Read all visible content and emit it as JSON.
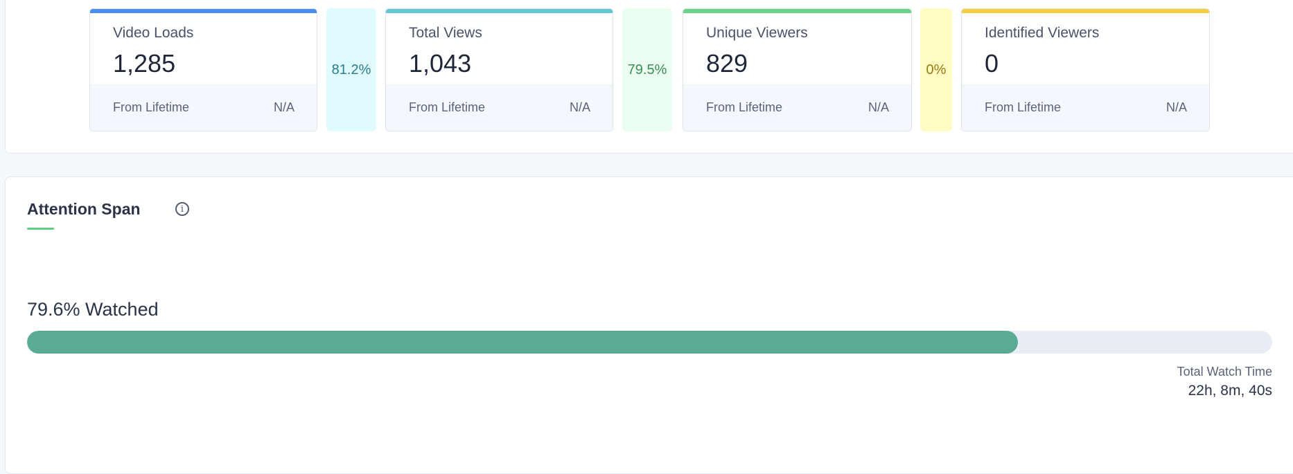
{
  "stats": [
    {
      "title": "Video Loads",
      "value": "1,285",
      "foot_label": "From Lifetime",
      "foot_value": "N/A",
      "accent": "#4a8ef0"
    },
    {
      "title": "Total Views",
      "value": "1,043",
      "foot_label": "From Lifetime",
      "foot_value": "N/A",
      "accent": "#62c6d4"
    },
    {
      "title": "Unique Viewers",
      "value": "829",
      "foot_label": "From Lifetime",
      "foot_value": "N/A",
      "accent": "#6cd388"
    },
    {
      "title": "Identified Viewers",
      "value": "0",
      "foot_label": "From Lifetime",
      "foot_value": "N/A",
      "accent": "#f2cf3e"
    }
  ],
  "conversions": [
    {
      "value": "81.2%",
      "bg": "#dffbfd",
      "color": "#2c7b8a"
    },
    {
      "value": "79.5%",
      "bg": "#ebfcf1",
      "color": "#3a8f55"
    },
    {
      "value": "0%",
      "bg": "#fefbc3",
      "color": "#9a7a12"
    }
  ],
  "attention": {
    "title": "Attention Span",
    "info_icon": "info-icon",
    "watched_label": "79.6% Watched",
    "watched_percent": 79.6,
    "total_watch_time_label": "Total Watch Time",
    "total_watch_time_value": "22h, 8m, 40s",
    "accent": "#5aab96"
  }
}
